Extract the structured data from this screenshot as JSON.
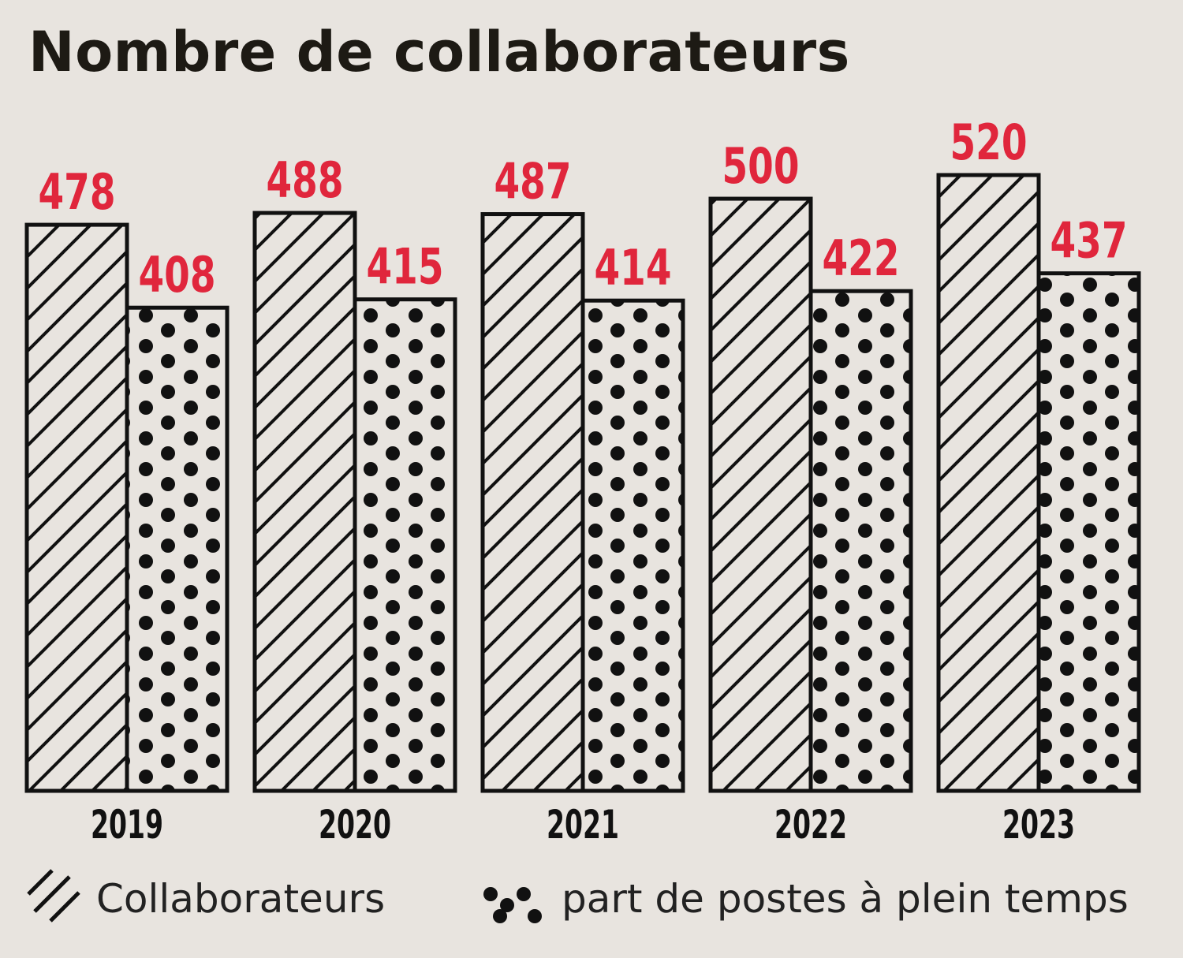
{
  "chart_data": {
    "type": "bar",
    "title": "Nombre de collaborateurs",
    "categories": [
      "2019",
      "2020",
      "2021",
      "2022",
      "2023"
    ],
    "series": [
      {
        "name": "Collaborateurs",
        "values": [
          478,
          488,
          487,
          500,
          520
        ],
        "pattern": "hatch"
      },
      {
        "name": "part de postes à plein temps",
        "values": [
          408,
          415,
          414,
          422,
          437
        ],
        "pattern": "dots"
      }
    ],
    "ylim": [
      0,
      520
    ],
    "grid": false,
    "legend_position": "bottom",
    "colors": {
      "background": "#e8e4df",
      "value_labels": "#e0263c",
      "bars": "#111111",
      "text": "#1d1a14"
    }
  }
}
